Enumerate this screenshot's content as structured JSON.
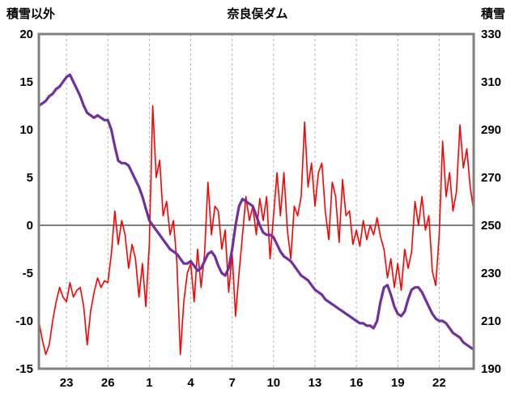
{
  "header": {
    "left_axis_title": "積雪以外",
    "title": "奈良俣ダム",
    "right_axis_title": "積雪"
  },
  "chart_data": {
    "type": "line",
    "title": "奈良俣ダム",
    "left_axis": {
      "label": "積雪以外",
      "min": -15,
      "max": 20,
      "ticks": [
        20,
        15,
        10,
        5,
        0,
        -5,
        -10,
        -15
      ]
    },
    "right_axis": {
      "label": "積雪",
      "min": 190,
      "max": 330,
      "ticks": [
        330,
        310,
        290,
        270,
        250,
        230,
        210,
        190
      ]
    },
    "x_axis": {
      "min": 0,
      "max": 31.5,
      "tick_positions": [
        2,
        5,
        8,
        11,
        14,
        17,
        20,
        23,
        26,
        29
      ],
      "tick_labels": [
        "23",
        "26",
        "1",
        "4",
        "7",
        "10",
        "13",
        "16",
        "19",
        "22"
      ]
    },
    "zero_line_left_value": 0,
    "grid": {
      "vertical_dashed": true,
      "color": "#b3b3b3"
    },
    "colors": {
      "border": "#808080",
      "zero_line": "#808080",
      "red_series": "#ff0000",
      "purple_series": "#7030a0"
    },
    "series": [
      {
        "name": "積雪以外",
        "axis": "left",
        "color": "#ff0000",
        "width": 1.6,
        "x0": 0,
        "dx": 0.25,
        "values": [
          -10,
          -12,
          -13.5,
          -12.5,
          -10,
          -8,
          -6.5,
          -7.5,
          -8,
          -6,
          -7.5,
          -6.8,
          -6.5,
          -8.5,
          -12.5,
          -9,
          -7,
          -5.5,
          -6.5,
          -5.8,
          -6,
          -3,
          1.5,
          -2,
          0.5,
          -1,
          -4.5,
          -2,
          -3.5,
          -7.5,
          -4,
          -8.5,
          -2,
          12.5,
          5,
          6.8,
          1,
          2.5,
          -1,
          0.5,
          -4,
          -13.5,
          -8,
          -5,
          -4,
          -8,
          -2.5,
          -6.5,
          -3,
          4.5,
          -1,
          2,
          1.5,
          -2.5,
          -0.5,
          -7,
          -3,
          -9.5,
          -5,
          -1,
          3,
          0.5,
          2,
          -1,
          2.8,
          0.5,
          3,
          -3.5,
          1,
          5.5,
          1,
          5.5,
          -0.5,
          -3.5,
          2,
          1,
          3,
          10.8,
          4,
          6.5,
          2,
          5.5,
          6.5,
          1.5,
          -1.5,
          4.5,
          3,
          -1.8,
          4.8,
          1,
          1.5,
          -2,
          -0.5,
          -2.2,
          0.5,
          -1.5,
          0,
          -1,
          0.8,
          -1.2,
          -2.5,
          -5.5,
          -3.5,
          -6.5,
          -4,
          -6.8,
          -2.5,
          -4.5,
          -2.8,
          2.5,
          0,
          3,
          -0.5,
          1,
          -4.8,
          -6.3,
          -1,
          8.8,
          3,
          5.5,
          1.5,
          3.5,
          10.5,
          6,
          8,
          4,
          1.5
        ]
      },
      {
        "name": "積雪",
        "axis": "right",
        "color": "#7030a0",
        "width": 3.2,
        "x0": 0,
        "dx": 0.25,
        "values": [
          300,
          301,
          302,
          304,
          305,
          307,
          308,
          310,
          312,
          313,
          310,
          307,
          304,
          300,
          297,
          296,
          295,
          296,
          295,
          294,
          294,
          290,
          283,
          277,
          276,
          276,
          275,
          272,
          269,
          266,
          262,
          257,
          252,
          250,
          248,
          246,
          244,
          242,
          240,
          239,
          238,
          236,
          234,
          234,
          235,
          233,
          231,
          232,
          235,
          238,
          239,
          237,
          233,
          230,
          229,
          232,
          240,
          250,
          258,
          261,
          260,
          259,
          258,
          254,
          250,
          247,
          246,
          246,
          245,
          242,
          239,
          237,
          236,
          235,
          233,
          231,
          229,
          228,
          227,
          225,
          223,
          222,
          221,
          219,
          218,
          217,
          216,
          215,
          214,
          213,
          212,
          211,
          210,
          209,
          209,
          208,
          208,
          207,
          210,
          218,
          224,
          225,
          221,
          216,
          213,
          212,
          214,
          219,
          223,
          224,
          224,
          222,
          219,
          216,
          213,
          211,
          210,
          210,
          209,
          207,
          205,
          204,
          203,
          201,
          200,
          199,
          198
        ]
      }
    ]
  }
}
